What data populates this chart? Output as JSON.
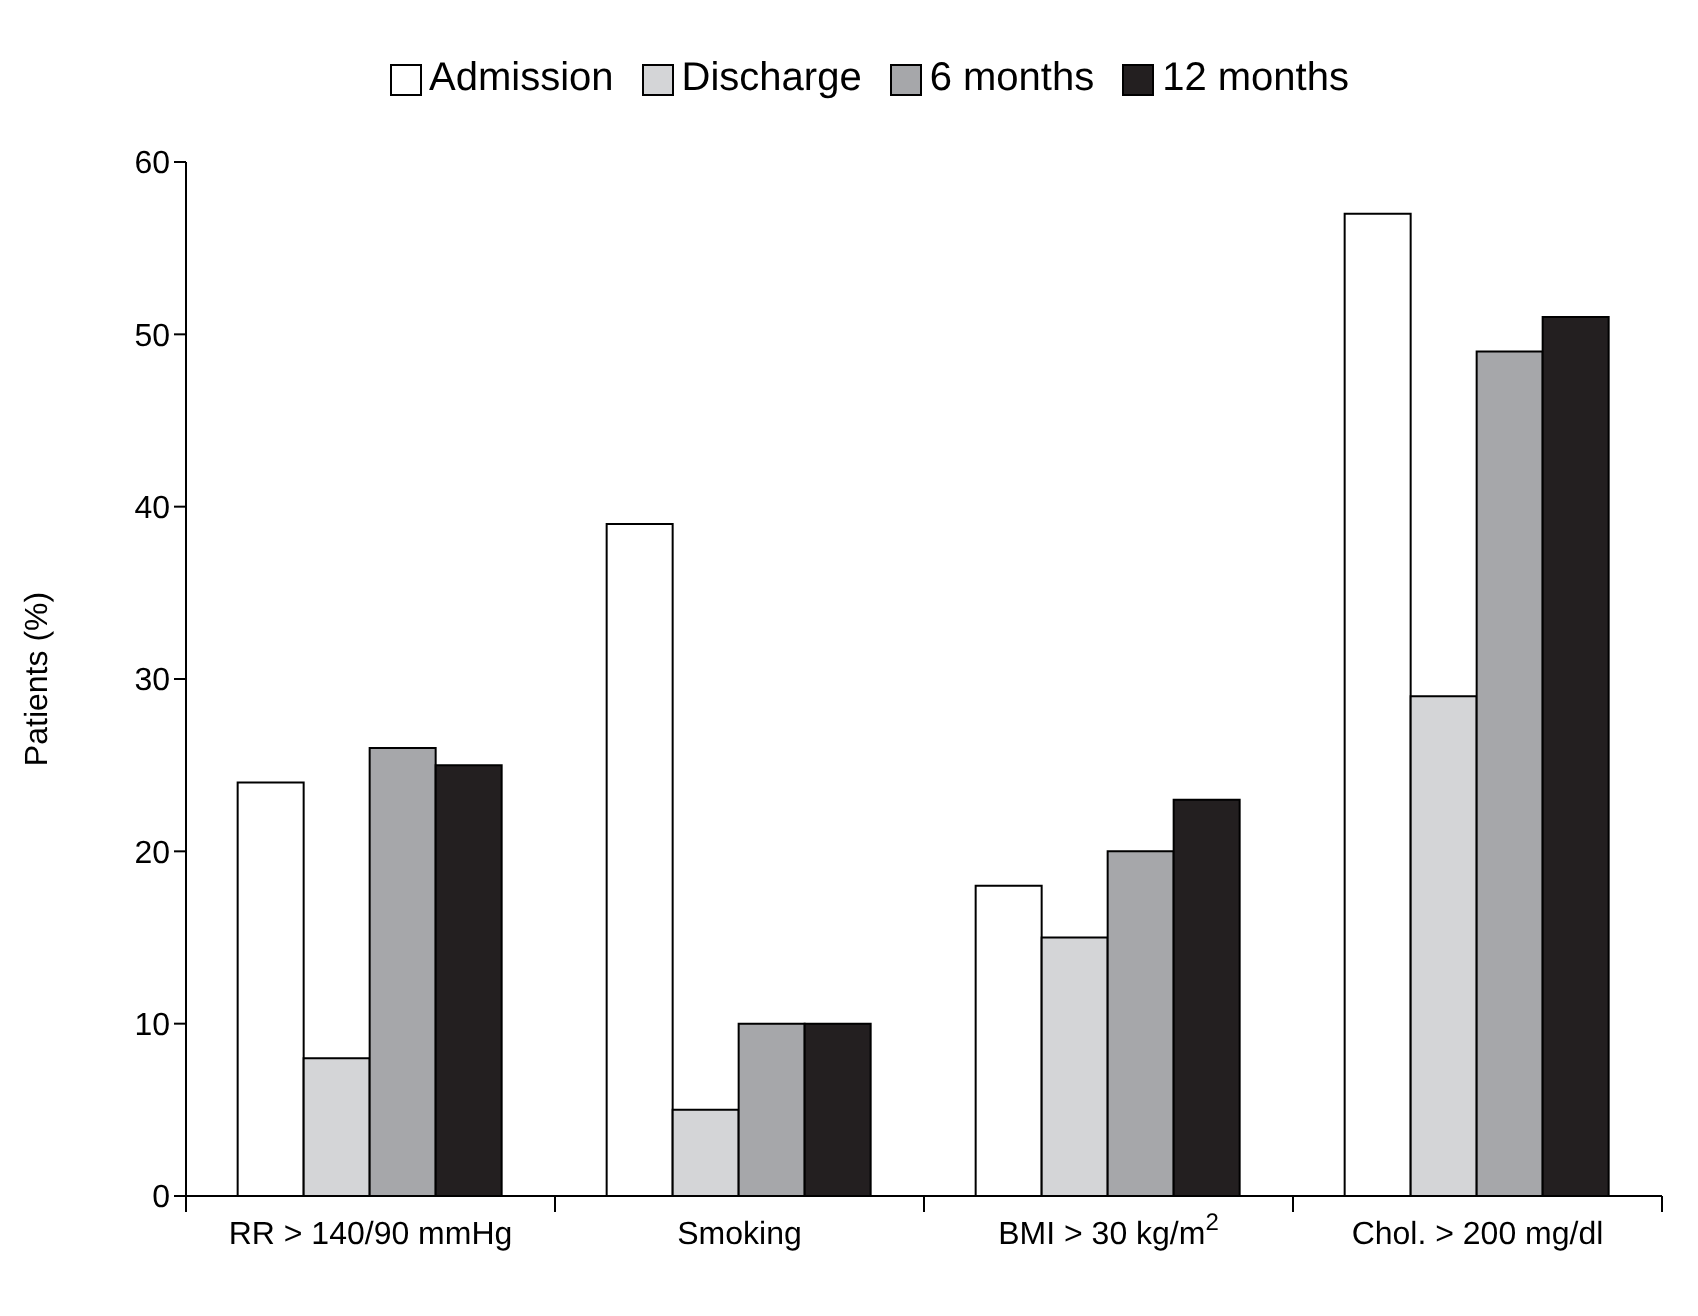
{
  "chart_data": {
    "type": "bar",
    "ylabel": "Patients (%)",
    "categories": [
      "RR > 140/90 mmHg",
      "Smoking",
      "BMI > 30 kg/m$^{2}$",
      "Chol. > 200 mg/dl"
    ],
    "series": [
      {
        "name": "Admission",
        "color": "#ffffff",
        "values": [
          24,
          39,
          18,
          57
        ]
      },
      {
        "name": "Discharge",
        "color": "#d4d5d7",
        "values": [
          8,
          5,
          15,
          29
        ]
      },
      {
        "name": "6 months",
        "color": "#a6a7aa",
        "values": [
          26,
          10,
          20,
          49
        ]
      },
      {
        "name": "12 months",
        "color": "#231f20",
        "values": [
          25,
          10,
          23,
          51
        ]
      }
    ],
    "ylim": [
      0,
      60
    ],
    "yticks": [
      0,
      10,
      20,
      30,
      40,
      50,
      60
    ],
    "grid": false,
    "legend": "top"
  }
}
